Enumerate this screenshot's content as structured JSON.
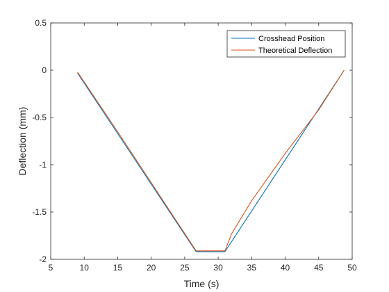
{
  "chart_data": {
    "type": "line",
    "title": "",
    "xlabel": "Time (s)",
    "ylabel": "Deflection (mm)",
    "xlim": [
      5,
      50
    ],
    "ylim": [
      -2,
      0.5
    ],
    "xticks": [
      5,
      10,
      15,
      20,
      25,
      30,
      35,
      40,
      45,
      50
    ],
    "xtick_labels": [
      "5",
      "10",
      "15",
      "20",
      "25",
      "30",
      "35",
      "40",
      "45",
      "50"
    ],
    "yticks": [
      -2,
      -1.5,
      -1,
      -0.5,
      0,
      0.5
    ],
    "ytick_labels": [
      "-2",
      "-1.5",
      "-1",
      "-0.5",
      "0",
      "0.5"
    ],
    "grid": false,
    "legend_position": "top-right",
    "series": [
      {
        "name": "Crosshead Position",
        "color": "#0072BD",
        "x": [
          9.0,
          26.7,
          31.0,
          48.8
        ],
        "y": [
          -0.03,
          -1.92,
          -1.92,
          0.0
        ]
      },
      {
        "name": "Theoretical Deflection",
        "color": "#D95319",
        "x": [
          9.0,
          15.0,
          26.7,
          31.0,
          32.0,
          35.0,
          40.0,
          45.0,
          48.8
        ],
        "y": [
          -0.02,
          -0.65,
          -1.91,
          -1.91,
          -1.73,
          -1.38,
          -0.88,
          -0.42,
          0.0
        ]
      }
    ]
  }
}
